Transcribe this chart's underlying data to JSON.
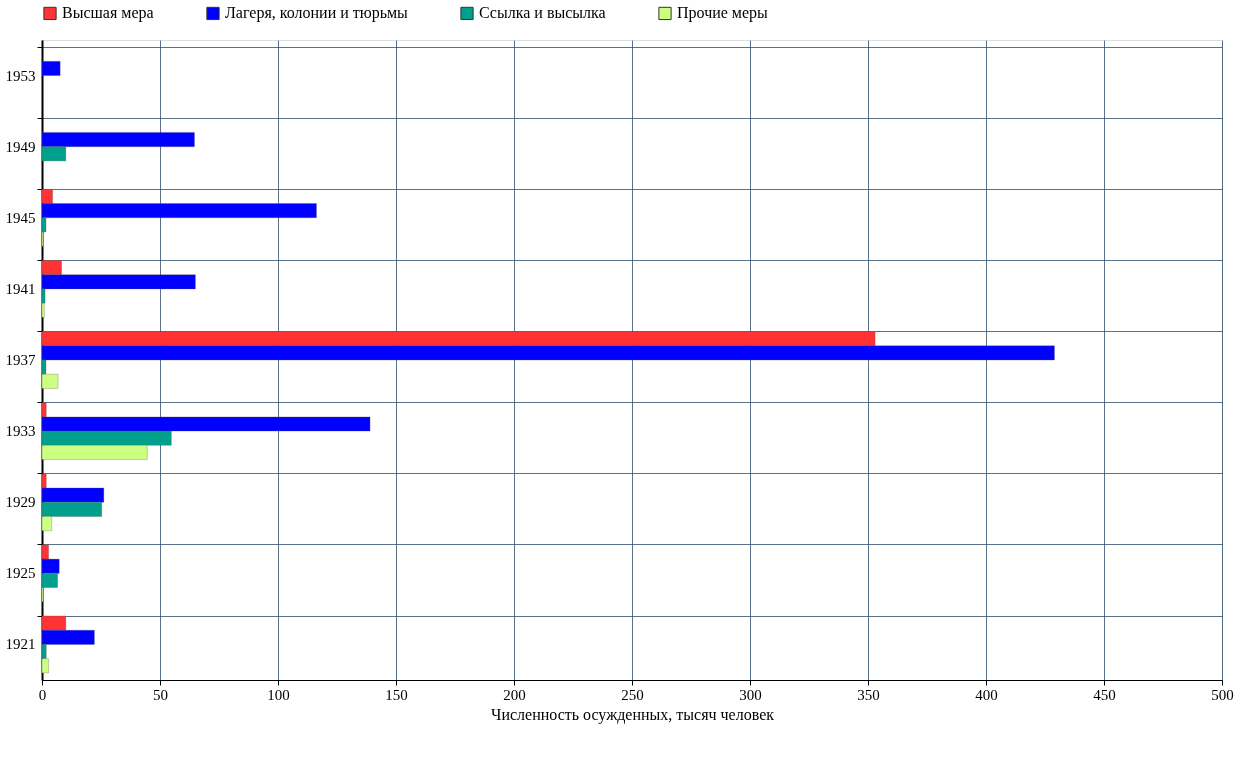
{
  "chart_data": {
    "type": "bar",
    "orientation": "horizontal",
    "xlabel": "Численность осужденных, тысяч человек",
    "categories": [
      "1953",
      "1949",
      "1945",
      "1941",
      "1937",
      "1933",
      "1929",
      "1925",
      "1921"
    ],
    "series": [
      {
        "name": "Высшая мера",
        "color": "#ff3333",
        "values": [
          null,
          null,
          4.5,
          8.3,
          353,
          1.8,
          1.8,
          2.8,
          10.1
        ]
      },
      {
        "name": "Лагеря, колонии и тюрьмы",
        "color": "#0000ff",
        "values": [
          7.7,
          64.6,
          116.3,
          65,
          429,
          139,
          26.2,
          7.3,
          22.2
        ]
      },
      {
        "name": "Ссылка и высылка",
        "color": "#00a08c",
        "values": [
          null,
          10.1,
          1.7,
          1.3,
          1.7,
          54.8,
          25.3,
          6.6,
          1.8
        ]
      },
      {
        "name": "Прочие меры",
        "color": "#ccff80",
        "values": [
          null,
          null,
          0.5,
          1,
          6.8,
          44.6,
          4.1,
          0.5,
          2.8
        ]
      }
    ],
    "xlim": [
      0,
      500
    ],
    "xticks": [
      0,
      50,
      100,
      150,
      200,
      250,
      300,
      350,
      400,
      450,
      500
    ],
    "grid": true,
    "legend": "top"
  }
}
